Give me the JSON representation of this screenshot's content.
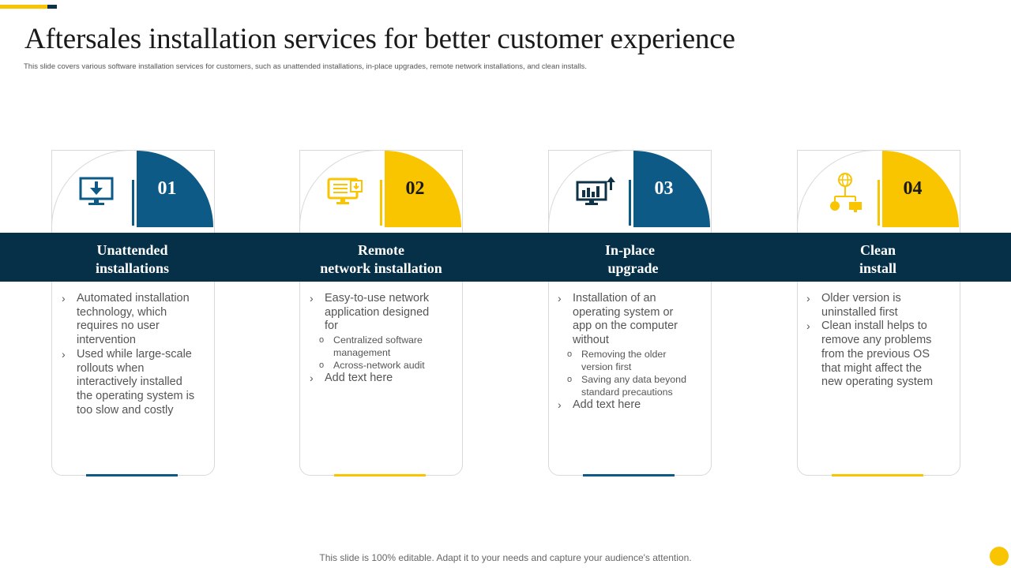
{
  "colors": {
    "navy": "#0E5A87",
    "yellow": "#F9C400",
    "band": "#053048"
  },
  "header": {
    "title": "Aftersales installation services for better customer experience",
    "subtitle": "This slide covers various software installation services for customers, such as unattended installations, in-place upgrades, remote network installations, and clean installs."
  },
  "cards": [
    {
      "number": "01",
      "icon": "monitor-download-icon",
      "title_line1": "Unattended",
      "title_line2": "installations",
      "bullets": [
        "Automated installation technology, which requires no user intervention",
        "Used while large-scale rollouts when interactively installed the operating system is too slow and costly"
      ]
    },
    {
      "number": "02",
      "icon": "network-screen-icon",
      "title_line1": "Remote",
      "title_line2": "network installation",
      "bullets": [
        "Easy-to-use network application designed for",
        "Add text here"
      ],
      "sub_bullets": [
        "Centralized software management",
        "Across-network audit"
      ]
    },
    {
      "number": "03",
      "icon": "chart-upgrade-icon",
      "title_line1": "In-place",
      "title_line2": "upgrade",
      "bullets": [
        "Installation of an operating system or app on the computer without",
        "Add text here"
      ],
      "sub_bullets": [
        "Removing the older version first",
        "Saving any data beyond standard precautions"
      ]
    },
    {
      "number": "04",
      "icon": "globe-network-icon",
      "title_line1": "Clean",
      "title_line2": "install",
      "bullets": [
        "Older version is uninstalled first",
        "Clean install helps to remove any problems from the previous OS that might affect the new operating system"
      ]
    }
  ],
  "footer": {
    "text": "This slide is 100% editable. Adapt it to your needs and capture your audience's attention."
  }
}
